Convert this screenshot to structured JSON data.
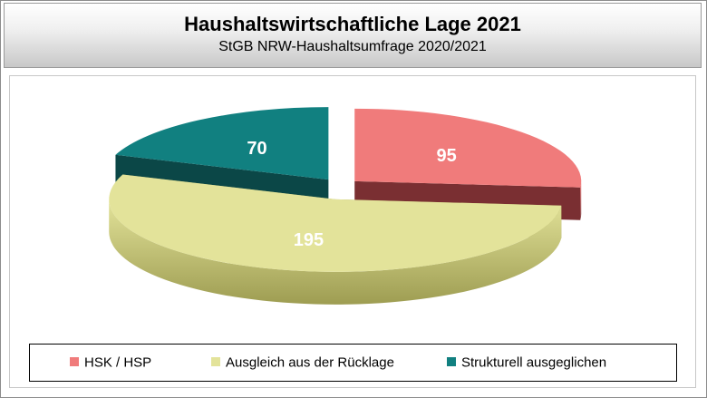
{
  "chart_data": {
    "type": "pie",
    "title": "Haushaltswirtschaftliche Lage 2021",
    "subtitle": "StGB NRW-Haushaltsumfrage 2020/2021",
    "three_d": true,
    "exploded": true,
    "legend_position": "bottom",
    "slices": [
      {
        "label": "HSK / HSP",
        "value": 95,
        "color": "#f07b7b",
        "dark_color": "#7a2f32"
      },
      {
        "label": "Ausgleich aus der Rücklage",
        "value": 195,
        "color": "#e3e39a",
        "dark_color": "#9e9d52"
      },
      {
        "label": "Strukturell ausgeglichen",
        "value": 70,
        "color": "#118080",
        "dark_color": "#0b4747"
      }
    ]
  }
}
